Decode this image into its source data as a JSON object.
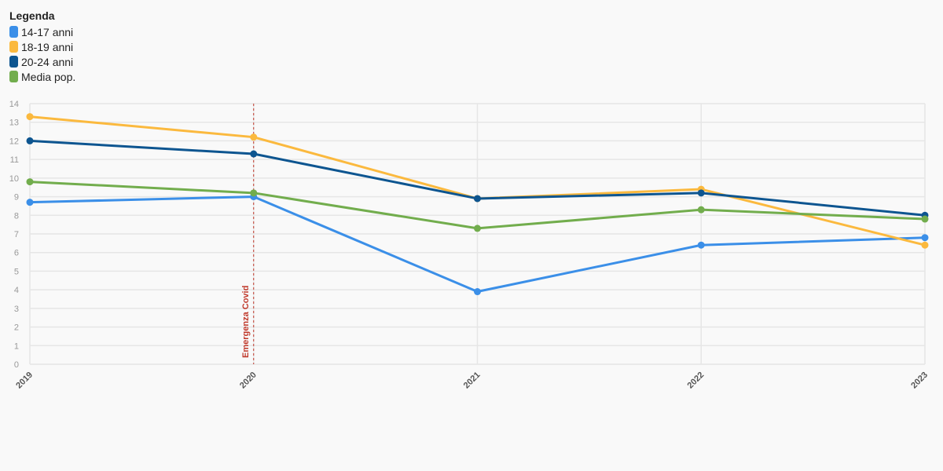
{
  "chart_data": {
    "type": "line",
    "title": "",
    "xlabel": "",
    "ylabel": "",
    "x": [
      "2019",
      "2020",
      "2021",
      "2022",
      "2023"
    ],
    "ylim": [
      0,
      14
    ],
    "yticks": [
      0,
      1,
      2,
      3,
      4,
      5,
      6,
      7,
      8,
      9,
      10,
      11,
      12,
      13,
      14
    ],
    "grid": true,
    "legend": {
      "title": "Legenda",
      "position": "top-left"
    },
    "series": [
      {
        "name": "14-17 anni",
        "color": "#3b8fe8",
        "values": [
          8.7,
          9.0,
          3.9,
          6.4,
          6.8
        ]
      },
      {
        "name": "18-19 anni",
        "color": "#fbb93e",
        "values": [
          13.3,
          12.2,
          8.9,
          9.4,
          6.4
        ]
      },
      {
        "name": "20-24 anni",
        "color": "#0d5590",
        "values": [
          12.0,
          11.3,
          8.9,
          9.2,
          8.0
        ]
      },
      {
        "name": "Media pop.",
        "color": "#72ad4d",
        "values": [
          9.8,
          9.2,
          7.3,
          8.3,
          7.8
        ]
      }
    ],
    "annotations": [
      {
        "label": "Emergenza Covid",
        "x": "2020",
        "color": "#c0392b"
      }
    ]
  }
}
